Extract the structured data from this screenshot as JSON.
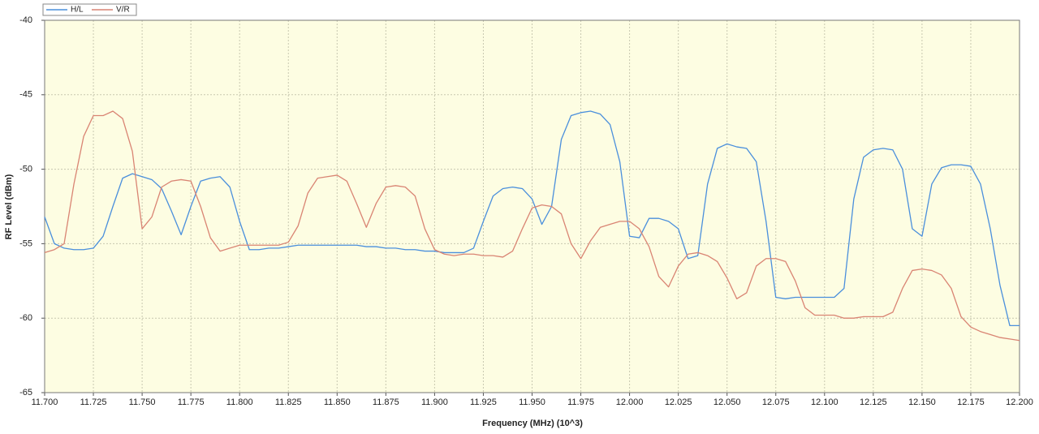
{
  "chart_data": {
    "type": "line",
    "x_label": "Frequency (MHz) (10^3)",
    "y_label": "RF Level (dBm)",
    "legend": "top-left",
    "grid": true,
    "plot_background": "#fdfde2",
    "xlim": [
      11.7,
      12.2
    ],
    "ylim": [
      -65,
      -40
    ],
    "xticks": [
      {
        "value": 11.7,
        "label": "11.700"
      },
      {
        "value": 11.725,
        "label": "11.725"
      },
      {
        "value": 11.75,
        "label": "11.750"
      },
      {
        "value": 11.775,
        "label": "11.775"
      },
      {
        "value": 11.8,
        "label": "11.800"
      },
      {
        "value": 11.825,
        "label": "11.825"
      },
      {
        "value": 11.85,
        "label": "11.850"
      },
      {
        "value": 11.875,
        "label": "11.875"
      },
      {
        "value": 11.9,
        "label": "11.900"
      },
      {
        "value": 11.925,
        "label": "11.925"
      },
      {
        "value": 11.95,
        "label": "11.950"
      },
      {
        "value": 11.975,
        "label": "11.975"
      },
      {
        "value": 12.0,
        "label": "12.000"
      },
      {
        "value": 12.025,
        "label": "12.025"
      },
      {
        "value": 12.05,
        "label": "12.050"
      },
      {
        "value": 12.075,
        "label": "12.075"
      },
      {
        "value": 12.1,
        "label": "12.100"
      },
      {
        "value": 12.125,
        "label": "12.125"
      },
      {
        "value": 12.15,
        "label": "12.150"
      },
      {
        "value": 12.175,
        "label": "12.175"
      },
      {
        "value": 12.2,
        "label": "12.200"
      }
    ],
    "yticks": [
      -40,
      -45,
      -50,
      -55,
      -60,
      -65
    ],
    "x": [
      11.7,
      11.705,
      11.71,
      11.715,
      11.72,
      11.725,
      11.73,
      11.735,
      11.74,
      11.745,
      11.75,
      11.755,
      11.76,
      11.765,
      11.77,
      11.775,
      11.78,
      11.785,
      11.79,
      11.795,
      11.8,
      11.805,
      11.81,
      11.815,
      11.82,
      11.825,
      11.83,
      11.835,
      11.84,
      11.845,
      11.85,
      11.855,
      11.86,
      11.865,
      11.87,
      11.875,
      11.88,
      11.885,
      11.89,
      11.895,
      11.9,
      11.905,
      11.91,
      11.915,
      11.92,
      11.925,
      11.93,
      11.935,
      11.94,
      11.945,
      11.95,
      11.955,
      11.96,
      11.965,
      11.97,
      11.975,
      11.98,
      11.985,
      11.99,
      11.995,
      12.0,
      12.005,
      12.01,
      12.015,
      12.02,
      12.025,
      12.03,
      12.035,
      12.04,
      12.045,
      12.05,
      12.055,
      12.06,
      12.065,
      12.07,
      12.075,
      12.08,
      12.085,
      12.09,
      12.095,
      12.1,
      12.105,
      12.11,
      12.115,
      12.12,
      12.125,
      12.13,
      12.135,
      12.14,
      12.145,
      12.15,
      12.155,
      12.16,
      12.165,
      12.17,
      12.175,
      12.18,
      12.185,
      12.19,
      12.195,
      12.2
    ],
    "series": [
      {
        "name": "H/L",
        "color": "#4a8fdc",
        "values": [
          -53.2,
          -55.0,
          -55.3,
          -55.4,
          -55.4,
          -55.3,
          -54.5,
          -52.5,
          -50.6,
          -50.3,
          -50.5,
          -50.7,
          -51.3,
          -52.8,
          -54.4,
          -52.5,
          -50.8,
          -50.6,
          -50.5,
          -51.2,
          -53.5,
          -55.4,
          -55.4,
          -55.3,
          -55.3,
          -55.2,
          -55.1,
          -55.1,
          -55.1,
          -55.1,
          -55.1,
          -55.1,
          -55.1,
          -55.2,
          -55.2,
          -55.3,
          -55.3,
          -55.4,
          -55.4,
          -55.5,
          -55.5,
          -55.6,
          -55.6,
          -55.6,
          -55.3,
          -53.5,
          -51.8,
          -51.3,
          -51.2,
          -51.3,
          -52.0,
          -53.7,
          -52.5,
          -48.0,
          -46.4,
          -46.2,
          -46.1,
          -46.3,
          -47.0,
          -49.5,
          -54.5,
          -54.6,
          -53.3,
          -53.3,
          -53.5,
          -54.0,
          -56.0,
          -55.8,
          -51.0,
          -48.6,
          -48.3,
          -48.5,
          -48.6,
          -49.5,
          -53.5,
          -58.6,
          -58.7,
          -58.6,
          -58.6,
          -58.6,
          -58.6,
          -58.6,
          -58.0,
          -52.0,
          -49.2,
          -48.7,
          -48.6,
          -48.7,
          -50.0,
          -54.0,
          -54.5,
          -51.0,
          -49.9,
          -49.7,
          -49.7,
          -49.8,
          -51.0,
          -54.0,
          -57.8,
          -60.5,
          -60.5
        ]
      },
      {
        "name": "V/R",
        "color": "#d98473",
        "values": [
          -55.6,
          -55.4,
          -55.0,
          -51.0,
          -47.8,
          -46.4,
          -46.4,
          -46.1,
          -46.6,
          -48.8,
          -54.0,
          -53.2,
          -51.2,
          -50.8,
          -50.7,
          -50.8,
          -52.5,
          -54.6,
          -55.5,
          -55.3,
          -55.1,
          -55.1,
          -55.1,
          -55.1,
          -55.1,
          -54.9,
          -53.8,
          -51.6,
          -50.6,
          -50.5,
          -50.4,
          -50.8,
          -52.3,
          -53.9,
          -52.3,
          -51.2,
          -51.1,
          -51.2,
          -51.8,
          -54.0,
          -55.4,
          -55.7,
          -55.8,
          -55.7,
          -55.7,
          -55.8,
          -55.8,
          -55.9,
          -55.5,
          -54.0,
          -52.6,
          -52.4,
          -52.5,
          -53.0,
          -55.0,
          -56.0,
          -54.8,
          -53.9,
          -53.7,
          -53.5,
          -53.5,
          -54.0,
          -55.2,
          -57.2,
          -57.9,
          -56.5,
          -55.7,
          -55.6,
          -55.8,
          -56.2,
          -57.3,
          -58.7,
          -58.3,
          -56.5,
          -56.0,
          -56.0,
          -56.2,
          -57.5,
          -59.3,
          -59.8,
          -59.8,
          -59.8,
          -60.0,
          -60.0,
          -59.9,
          -59.9,
          -59.9,
          -59.6,
          -58.0,
          -56.8,
          -56.7,
          -56.8,
          -57.1,
          -58.0,
          -59.9,
          -60.6,
          -60.9,
          -61.1,
          -61.3,
          -61.4,
          -61.5
        ]
      }
    ]
  }
}
